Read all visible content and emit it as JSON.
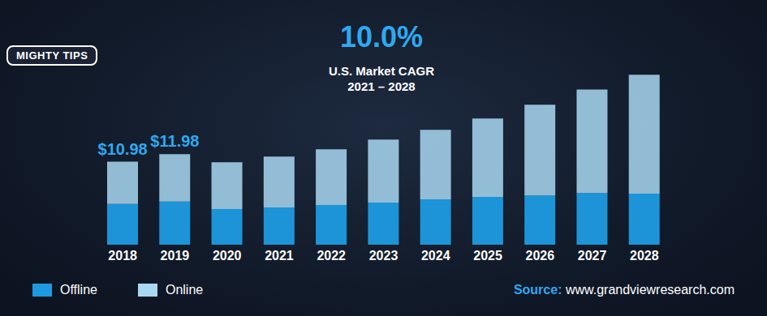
{
  "chart_data": {
    "type": "bar",
    "title": "10.0%",
    "subtitle": "U.S. Market CAGR\n2021 – 2028",
    "logo": "MIGHTY TIPS",
    "source_label": "Source:",
    "source": "www.grandviewresearch.com",
    "categories": [
      "2018",
      "2019",
      "2020",
      "2021",
      "2022",
      "2023",
      "2024",
      "2025",
      "2026",
      "2027",
      "2028"
    ],
    "series": [
      {
        "name": "Offline",
        "color": "#1e9be0",
        "values": [
          5.38,
          5.7,
          4.71,
          4.92,
          5.24,
          5.56,
          5.99,
          6.31,
          6.52,
          6.84,
          6.74
        ]
      },
      {
        "name": "Online",
        "color": "#a9d8f2",
        "values": [
          5.6,
          6.28,
          6.2,
          6.74,
          7.38,
          8.34,
          9.2,
          10.37,
          11.98,
          13.69,
          15.72
        ]
      }
    ],
    "stacked": true,
    "ylim": [
      0,
      24
    ],
    "tick_labels": "x",
    "grid": false,
    "legend": "bottom-left",
    "annotations": [
      {
        "text": "$10.98",
        "category": "2018",
        "value": 10.98
      },
      {
        "text": "$11.98",
        "category": "2019",
        "value": 11.98
      }
    ]
  }
}
